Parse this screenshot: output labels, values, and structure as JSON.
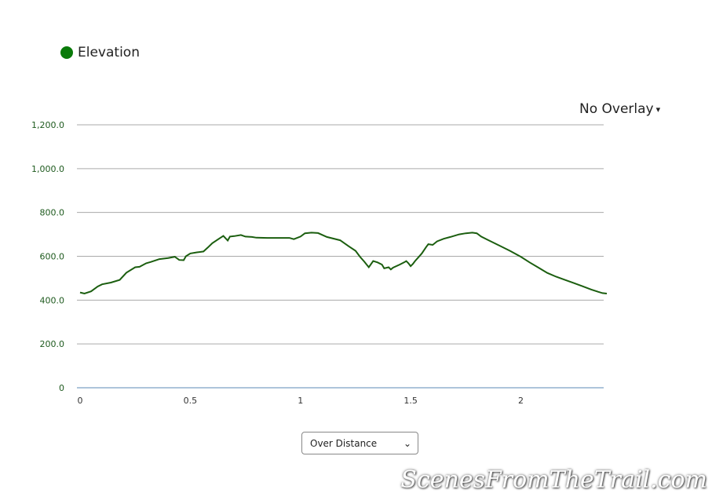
{
  "legend": {
    "label": "Elevation",
    "color": "#0a7a0a"
  },
  "overlay": {
    "label": "No Overlay",
    "arrow": "▾"
  },
  "selector": {
    "value": "Over Distance"
  },
  "watermark": "ScenesFromTheTrail.com",
  "colors": {
    "line": "#1b5e0f",
    "grid": "#aaaaaa",
    "baseline": "#5b8ab5",
    "ytick": "#1e5a1e"
  },
  "chart_data": {
    "type": "line",
    "title": "",
    "xlabel": "",
    "ylabel": "",
    "xlim": [
      0,
      2.39
    ],
    "ylim": [
      0,
      1200
    ],
    "yticks": [
      0,
      200,
      400,
      600,
      800,
      1000,
      1200
    ],
    "ytick_labels": [
      "0",
      "200.0",
      "400.0",
      "600.0",
      "800.0",
      "1,000.0",
      "1,200.0"
    ],
    "xticks": [
      0,
      0.5,
      1,
      1.5,
      2
    ],
    "xtick_labels": [
      "0",
      "0.5",
      "1",
      "1.5",
      "2"
    ],
    "grid": true,
    "legend_position": "top-left",
    "series": [
      {
        "name": "Elevation",
        "x": [
          0.0,
          0.02,
          0.05,
          0.08,
          0.1,
          0.14,
          0.18,
          0.21,
          0.25,
          0.27,
          0.3,
          0.32,
          0.36,
          0.4,
          0.43,
          0.45,
          0.47,
          0.48,
          0.5,
          0.53,
          0.56,
          0.58,
          0.6,
          0.63,
          0.65,
          0.67,
          0.68,
          0.7,
          0.73,
          0.75,
          0.78,
          0.8,
          0.85,
          0.9,
          0.95,
          0.97,
          1.0,
          1.02,
          1.05,
          1.08,
          1.12,
          1.18,
          1.22,
          1.25,
          1.27,
          1.29,
          1.31,
          1.33,
          1.35,
          1.37,
          1.38,
          1.4,
          1.41,
          1.42,
          1.45,
          1.47,
          1.48,
          1.49,
          1.5,
          1.51,
          1.52,
          1.55,
          1.57,
          1.58,
          1.6,
          1.62,
          1.65,
          1.68,
          1.72,
          1.75,
          1.78,
          1.8,
          1.82,
          1.85,
          1.9,
          1.95,
          2.0,
          2.04,
          2.08,
          2.12,
          2.16,
          2.2,
          2.24,
          2.28,
          2.32,
          2.35,
          2.37,
          2.39
        ],
        "y": [
          435,
          430,
          440,
          462,
          472,
          480,
          492,
          525,
          550,
          552,
          568,
          574,
          587,
          592,
          598,
          583,
          582,
          600,
          613,
          618,
          622,
          640,
          660,
          680,
          693,
          672,
          690,
          692,
          697,
          690,
          688,
          685,
          684,
          684,
          684,
          678,
          690,
          705,
          708,
          706,
          688,
          673,
          645,
          625,
          598,
          575,
          550,
          578,
          572,
          562,
          545,
          550,
          540,
          548,
          562,
          572,
          578,
          568,
          555,
          565,
          578,
          612,
          642,
          655,
          652,
          668,
          680,
          688,
          700,
          705,
          708,
          705,
          690,
          675,
          650,
          625,
          598,
          572,
          548,
          524,
          507,
          492,
          478,
          463,
          448,
          438,
          432,
          430
        ]
      }
    ]
  }
}
